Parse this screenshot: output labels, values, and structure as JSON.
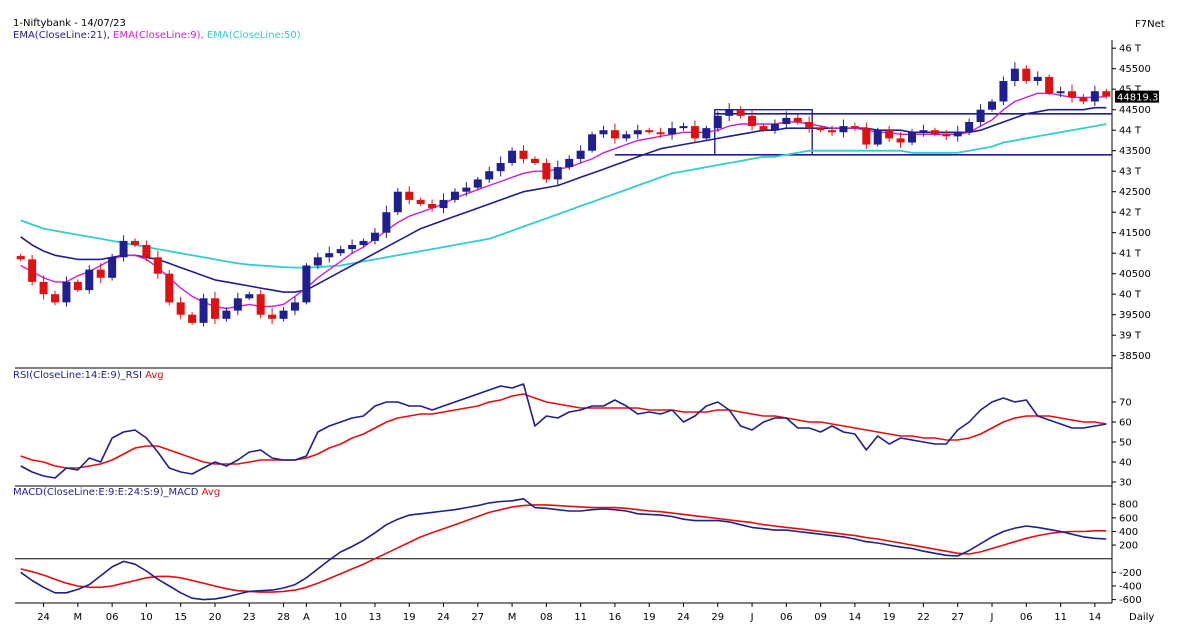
{
  "header": {
    "symbol_line": "1-Niftybank - 14/07/23",
    "brand": "F7Net",
    "footer_period": "Daily",
    "ema_labels": [
      {
        "text": "EMA(CloseLine:21),",
        "color": "#1f1f8f"
      },
      {
        "text": "EMA(CloseLine:9),",
        "color": "#cc22cc"
      },
      {
        "text": "EMA(CloseLine:50)",
        "color": "#33cccc"
      }
    ],
    "rsi_label": {
      "name": "RSI(CloseLine:14:E:9)_RSI",
      "avg": "Avg"
    },
    "macd_label": {
      "name": "MACD(CloseLine:E:9:E:24:S:9)_MACD",
      "avg": "Avg"
    }
  },
  "colors": {
    "bull": "#1f1f8f",
    "bear": "#e01010",
    "ema21": "#1f1f8f",
    "ema9": "#cc22cc",
    "ema50": "#33cccc",
    "rsi": "#1f1f8f",
    "avg": "#e01010",
    "hline": "#1f1f8f"
  },
  "chart_data": [
    {
      "type": "candlestick",
      "panel": "price",
      "ylim": [
        38200,
        46200
      ],
      "y_ticks": [
        {
          "v": 46000,
          "label": "46 T"
        },
        {
          "v": 45500,
          "label": "45500"
        },
        {
          "v": 45000,
          "label": "45 T"
        },
        {
          "v": 44500,
          "label": "44500"
        },
        {
          "v": 44000,
          "label": "44 T"
        },
        {
          "v": 43500,
          "label": "43500"
        },
        {
          "v": 43000,
          "label": "43 T"
        },
        {
          "v": 42500,
          "label": "42500"
        },
        {
          "v": 42000,
          "label": "42 T"
        },
        {
          "v": 41500,
          "label": "41500"
        },
        {
          "v": 41000,
          "label": "41 T"
        },
        {
          "v": 40500,
          "label": "40500"
        },
        {
          "v": 40000,
          "label": "40 T"
        },
        {
          "v": 39500,
          "label": "39500"
        },
        {
          "v": 39000,
          "label": "39 T"
        },
        {
          "v": 38500,
          "label": "38500"
        }
      ],
      "last_price_label": "44819.3",
      "last_price": 44819,
      "x_tick_labels": [
        {
          "i": 2,
          "label": "24"
        },
        {
          "i": 5,
          "label": "M"
        },
        {
          "i": 8,
          "label": "06"
        },
        {
          "i": 11,
          "label": "10"
        },
        {
          "i": 14,
          "label": "15"
        },
        {
          "i": 17,
          "label": "20"
        },
        {
          "i": 20,
          "label": "23"
        },
        {
          "i": 23,
          "label": "28"
        },
        {
          "i": 25,
          "label": "A"
        },
        {
          "i": 28,
          "label": "10"
        },
        {
          "i": 31,
          "label": "13"
        },
        {
          "i": 34,
          "label": "19"
        },
        {
          "i": 37,
          "label": "24"
        },
        {
          "i": 40,
          "label": "27"
        },
        {
          "i": 43,
          "label": "M"
        },
        {
          "i": 46,
          "label": "08"
        },
        {
          "i": 49,
          "label": "11"
        },
        {
          "i": 52,
          "label": "16"
        },
        {
          "i": 55,
          "label": "19"
        },
        {
          "i": 58,
          "label": "24"
        },
        {
          "i": 61,
          "label": "29"
        },
        {
          "i": 64,
          "label": "J"
        },
        {
          "i": 67,
          "label": "06"
        },
        {
          "i": 70,
          "label": "09"
        },
        {
          "i": 73,
          "label": "14"
        },
        {
          "i": 76,
          "label": "19"
        },
        {
          "i": 79,
          "label": "22"
        },
        {
          "i": 82,
          "label": "27"
        },
        {
          "i": 85,
          "label": "J"
        },
        {
          "i": 88,
          "label": "06"
        },
        {
          "i": 91,
          "label": "11"
        },
        {
          "i": 94,
          "label": "14"
        }
      ],
      "horizontal_levels": [
        44400,
        43400
      ],
      "range_box": {
        "i_start": 61,
        "i_end": 69,
        "low": 43400,
        "high": 44500
      },
      "close": [
        40850,
        40300,
        40000,
        39800,
        40300,
        40100,
        40600,
        40400,
        40900,
        41300,
        41200,
        40900,
        40500,
        39800,
        39500,
        39300,
        39900,
        39400,
        39600,
        39900,
        40000,
        39500,
        39400,
        39600,
        39800,
        40700,
        40900,
        41000,
        41100,
        41200,
        41300,
        41500,
        42000,
        42500,
        42300,
        42200,
        42100,
        42300,
        42500,
        42600,
        42800,
        43000,
        43200,
        43500,
        43300,
        43200,
        42800,
        43100,
        43300,
        43500,
        43900,
        44000,
        43800,
        43900,
        44000,
        43950,
        43900,
        44050,
        44100,
        43800,
        44050,
        44350,
        44500,
        44350,
        44100,
        44000,
        44150,
        44300,
        44200,
        44050,
        44000,
        43950,
        44100,
        44050,
        43650,
        44000,
        43800,
        43700,
        43950,
        44000,
        43900,
        43850,
        43950,
        44200,
        44500,
        44700,
        45200,
        45500,
        45200,
        45300,
        44900,
        44950,
        44800,
        44700,
        44950,
        44819
      ],
      "ema9": [
        40700,
        40550,
        40400,
        40300,
        40300,
        40450,
        40550,
        40700,
        40850,
        40950,
        40950,
        40850,
        40650,
        40400,
        40150,
        39950,
        39800,
        39700,
        39650,
        39700,
        39750,
        39700,
        39700,
        39750,
        39950,
        40150,
        40400,
        40600,
        40800,
        41000,
        41150,
        41350,
        41550,
        41750,
        41900,
        42000,
        42100,
        42200,
        42350,
        42450,
        42550,
        42650,
        42750,
        42850,
        42950,
        43000,
        43000,
        43050,
        43100,
        43200,
        43300,
        43450,
        43550,
        43650,
        43750,
        43800,
        43850,
        43900,
        43950,
        43950,
        43950,
        44000,
        44100,
        44150,
        44150,
        44150,
        44150,
        44200,
        44200,
        44150,
        44100,
        44050,
        44050,
        44050,
        44000,
        43950,
        43950,
        43900,
        43900,
        43900,
        43900,
        43900,
        43900,
        43950,
        44100,
        44250,
        44500,
        44700,
        44800,
        44900,
        44900,
        44850,
        44800,
        44800,
        44800,
        44819
      ],
      "ema21": [
        41400,
        41200,
        41050,
        40950,
        40900,
        40850,
        40850,
        40850,
        40900,
        40950,
        40950,
        40900,
        40850,
        40750,
        40650,
        40550,
        40450,
        40350,
        40300,
        40250,
        40200,
        40150,
        40100,
        40050,
        40050,
        40100,
        40250,
        40400,
        40550,
        40700,
        40850,
        41000,
        41150,
        41300,
        41450,
        41600,
        41700,
        41800,
        41900,
        42000,
        42100,
        42200,
        42300,
        42400,
        42500,
        42550,
        42600,
        42650,
        42750,
        42850,
        42950,
        43050,
        43150,
        43250,
        43350,
        43450,
        43550,
        43600,
        43650,
        43700,
        43750,
        43800,
        43850,
        43900,
        43950,
        44000,
        44000,
        44050,
        44050,
        44050,
        44050,
        44050,
        44050,
        44050,
        44050,
        44000,
        44000,
        44000,
        43950,
        43950,
        43950,
        43950,
        43950,
        43950,
        44000,
        44100,
        44200,
        44300,
        44400,
        44450,
        44500,
        44500,
        44500,
        44500,
        44550,
        44550
      ],
      "ema50": [
        41800,
        41700,
        41600,
        41550,
        41500,
        41450,
        41400,
        41350,
        41300,
        41250,
        41200,
        41150,
        41100,
        41050,
        41000,
        40950,
        40900,
        40850,
        40800,
        40750,
        40720,
        40700,
        40680,
        40660,
        40650,
        40650,
        40660,
        40680,
        40700,
        40750,
        40800,
        40850,
        40900,
        40950,
        41000,
        41050,
        41100,
        41150,
        41200,
        41250,
        41300,
        41350,
        41450,
        41550,
        41650,
        41750,
        41850,
        41950,
        42050,
        42150,
        42250,
        42350,
        42450,
        42550,
        42650,
        42750,
        42850,
        42950,
        43000,
        43050,
        43100,
        43150,
        43200,
        43250,
        43300,
        43350,
        43350,
        43400,
        43450,
        43500,
        43500,
        43500,
        43500,
        43500,
        43500,
        43500,
        43500,
        43500,
        43450,
        43450,
        43450,
        43450,
        43450,
        43500,
        43550,
        43600,
        43700,
        43750,
        43800,
        43850,
        43900,
        43950,
        44000,
        44050,
        44100,
        44150
      ]
    },
    {
      "type": "line",
      "panel": "rsi",
      "ylim": [
        28,
        82
      ],
      "y_ticks": [
        {
          "v": 70,
          "label": "70"
        },
        {
          "v": 60,
          "label": "60"
        },
        {
          "v": 50,
          "label": "50"
        },
        {
          "v": 40,
          "label": "40"
        },
        {
          "v": 30,
          "label": "30"
        }
      ],
      "series": [
        {
          "name": "RSI(CloseLine:14:E:9)_RSI",
          "values": [
            38,
            35,
            33,
            32,
            37,
            36,
            42,
            40,
            52,
            55,
            56,
            52,
            45,
            37,
            35,
            34,
            37,
            40,
            38,
            41,
            45,
            46,
            42,
            41,
            41,
            43,
            55,
            58,
            60,
            62,
            63,
            68,
            70,
            70,
            68,
            68,
            66,
            68,
            70,
            72,
            74,
            76,
            78,
            77,
            79,
            58,
            63,
            62,
            65,
            66,
            68,
            68,
            71,
            68,
            64,
            65,
            64,
            66,
            60,
            63,
            68,
            70,
            66,
            58,
            56,
            60,
            62,
            62,
            57,
            57,
            55,
            58,
            55,
            54,
            46,
            53,
            49,
            52,
            51,
            50,
            49,
            49,
            56,
            60,
            66,
            70,
            72,
            70,
            71,
            63,
            61,
            59,
            57,
            57,
            58,
            59
          ]
        },
        {
          "name": "Avg",
          "values": [
            43,
            41,
            40,
            38,
            37,
            37,
            38,
            39,
            41,
            44,
            47,
            48,
            48,
            46,
            44,
            42,
            40,
            39,
            39,
            39,
            40,
            41,
            41,
            41,
            41,
            42,
            44,
            47,
            49,
            52,
            54,
            57,
            60,
            62,
            63,
            64,
            64,
            65,
            66,
            67,
            68,
            70,
            71,
            73,
            74,
            72,
            70,
            69,
            68,
            67,
            67,
            67,
            67,
            67,
            67,
            66,
            66,
            66,
            65,
            65,
            65,
            66,
            66,
            65,
            64,
            63,
            63,
            62,
            61,
            60,
            60,
            59,
            58,
            57,
            56,
            55,
            54,
            53,
            53,
            52,
            52,
            51,
            51,
            52,
            54,
            57,
            60,
            62,
            63,
            63,
            63,
            62,
            61,
            60,
            60,
            59
          ]
        }
      ]
    },
    {
      "type": "line",
      "panel": "macd",
      "ylim": [
        -650,
        950
      ],
      "zero_line": 0,
      "y_ticks": [
        {
          "v": 800,
          "label": "800"
        },
        {
          "v": 600,
          "label": "600"
        },
        {
          "v": 400,
          "label": "400"
        },
        {
          "v": 200,
          "label": "200"
        },
        {
          "v": -200,
          "label": "-200"
        },
        {
          "v": -400,
          "label": "-400"
        },
        {
          "v": -600,
          "label": "-600"
        }
      ],
      "series": [
        {
          "name": "MACD(CloseLine:E:9:E:24:S:9)_MACD",
          "values": [
            -200,
            -320,
            -420,
            -500,
            -500,
            -450,
            -380,
            -250,
            -120,
            -40,
            -80,
            -180,
            -300,
            -400,
            -500,
            -580,
            -600,
            -590,
            -560,
            -520,
            -480,
            -470,
            -460,
            -430,
            -380,
            -280,
            -150,
            -20,
            100,
            180,
            270,
            380,
            500,
            580,
            640,
            660,
            680,
            700,
            720,
            750,
            780,
            820,
            840,
            850,
            880,
            750,
            740,
            720,
            700,
            700,
            720,
            730,
            720,
            700,
            660,
            650,
            640,
            620,
            580,
            560,
            560,
            560,
            540,
            500,
            460,
            440,
            420,
            420,
            400,
            380,
            360,
            340,
            320,
            290,
            250,
            230,
            200,
            170,
            150,
            110,
            80,
            50,
            40,
            120,
            220,
            320,
            400,
            450,
            480,
            460,
            430,
            400,
            360,
            320,
            300,
            290
          ]
        },
        {
          "name": "Avg",
          "values": [
            -150,
            -190,
            -240,
            -300,
            -360,
            -400,
            -420,
            -420,
            -400,
            -360,
            -320,
            -280,
            -260,
            -260,
            -280,
            -320,
            -360,
            -400,
            -440,
            -470,
            -480,
            -490,
            -490,
            -480,
            -460,
            -420,
            -360,
            -290,
            -220,
            -150,
            -80,
            0,
            80,
            160,
            240,
            320,
            380,
            440,
            500,
            560,
            620,
            680,
            720,
            760,
            780,
            790,
            790,
            780,
            770,
            760,
            750,
            750,
            750,
            740,
            720,
            700,
            690,
            670,
            650,
            630,
            610,
            590,
            570,
            550,
            530,
            500,
            480,
            460,
            440,
            420,
            400,
            380,
            360,
            340,
            310,
            290,
            260,
            230,
            200,
            170,
            140,
            110,
            80,
            70,
            100,
            150,
            200,
            250,
            300,
            340,
            370,
            390,
            400,
            400,
            410,
            410
          ]
        }
      ]
    }
  ]
}
